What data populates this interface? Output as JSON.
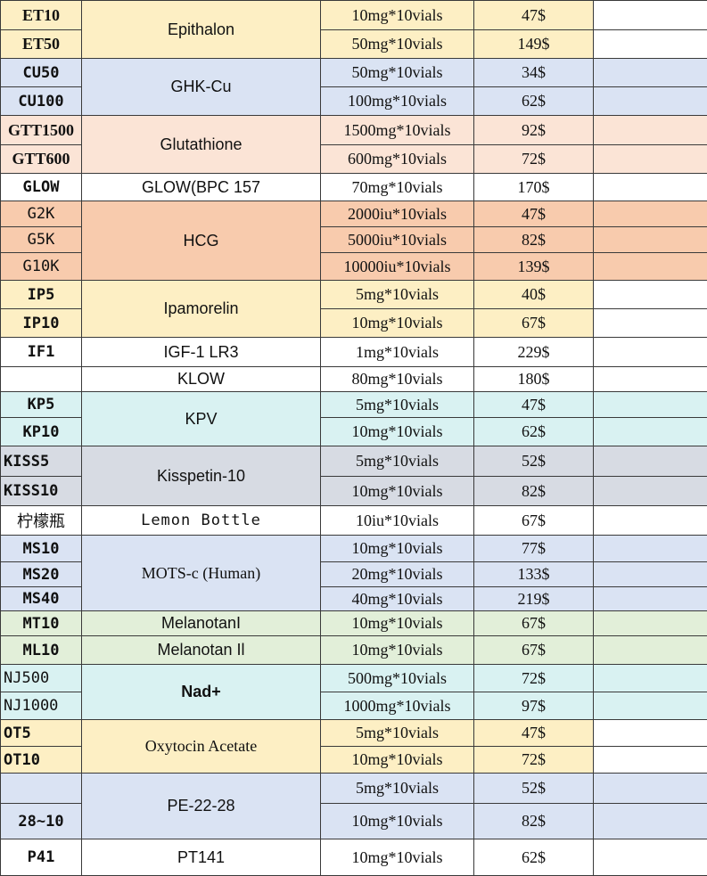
{
  "colors": {
    "yellow": "#fdefc4",
    "blue": "#dae3f3",
    "peach": "#fbe4d6",
    "salmon": "#f8cbad",
    "cyan": "#d9f2f2",
    "grey": "#d7dbe3",
    "green": "#e2efd9",
    "white": "#ffffff"
  },
  "rows": [
    {
      "code": "ET10",
      "name": "Epithalon",
      "spec": "10mg*10vials",
      "price": "47$"
    },
    {
      "code": "ET50",
      "spec": "50mg*10vials",
      "price": "149$"
    },
    {
      "code": "CU50",
      "name": "GHK-Cu",
      "spec": "50mg*10vials",
      "price": "34$"
    },
    {
      "code": "CU100",
      "spec": "100mg*10vials",
      "price": "62$"
    },
    {
      "code": "GTT1500",
      "name": "Glutathione",
      "spec": "1500mg*10vials",
      "price": "92$"
    },
    {
      "code": "GTT600",
      "spec": "600mg*10vials",
      "price": "72$"
    },
    {
      "code": "GLOW",
      "name": "GLOW(BPC 157",
      "spec": "70mg*10vials",
      "price": "170$"
    },
    {
      "code": "G2K",
      "name": "HCG",
      "spec": "2000iu*10vials",
      "price": "47$"
    },
    {
      "code": "G5K",
      "spec": "5000iu*10vials",
      "price": "82$"
    },
    {
      "code": "G10K",
      "spec": "10000iu*10vials",
      "price": "139$"
    },
    {
      "code": "IP5",
      "name": "Ipamorelin",
      "spec": "5mg*10vials",
      "price": "40$"
    },
    {
      "code": "IP10",
      "spec": "10mg*10vials",
      "price": "67$"
    },
    {
      "code": "IF1",
      "name": "IGF-1 LR3",
      "spec": "1mg*10vials",
      "price": "229$"
    },
    {
      "code": "",
      "name": "KLOW",
      "spec": "80mg*10vials",
      "price": "180$"
    },
    {
      "code": "KP5",
      "name": "KPV",
      "spec": "5mg*10vials",
      "price": "47$"
    },
    {
      "code": "KP10",
      "spec": "10mg*10vials",
      "price": "62$"
    },
    {
      "code": "KISS5",
      "name": "Kisspetin-10",
      "spec": "5mg*10vials",
      "price": "52$"
    },
    {
      "code": "KISS10",
      "spec": "10mg*10vials",
      "price": "82$"
    },
    {
      "code": "柠檬瓶",
      "name": "Lemon Bottle",
      "spec": "10iu*10vials",
      "price": "67$"
    },
    {
      "code": "MS10",
      "name": "MOTS-c (Human)",
      "spec": "10mg*10vials",
      "price": "77$"
    },
    {
      "code": "MS20",
      "spec": "20mg*10vials",
      "price": "133$"
    },
    {
      "code": "MS40",
      "spec": "40mg*10vials",
      "price": "219$"
    },
    {
      "code": "MT10",
      "name": "MelanotanI",
      "spec": "10mg*10vials",
      "price": "67$"
    },
    {
      "code": "ML10",
      "name": "Melanotan Il",
      "spec": "10mg*10vials",
      "price": "67$"
    },
    {
      "code": "NJ500",
      "name": "Nad+",
      "spec": "500mg*10vials",
      "price": "72$"
    },
    {
      "code": "NJ1000",
      "spec": "1000mg*10vials",
      "price": "97$"
    },
    {
      "code": "OT5",
      "name": "Oxytocin Acetate",
      "spec": "5mg*10vials",
      "price": "47$"
    },
    {
      "code": "OT10",
      "spec": "10mg*10vials",
      "price": "72$"
    },
    {
      "code": "",
      "name": "PE-22-28",
      "spec": "5mg*10vials",
      "price": "52$"
    },
    {
      "code": "28~10",
      "spec": "10mg*10vials",
      "price": "82$"
    },
    {
      "code": "P41",
      "name": "PT141",
      "spec": "10mg*10vials",
      "price": "62$"
    }
  ]
}
